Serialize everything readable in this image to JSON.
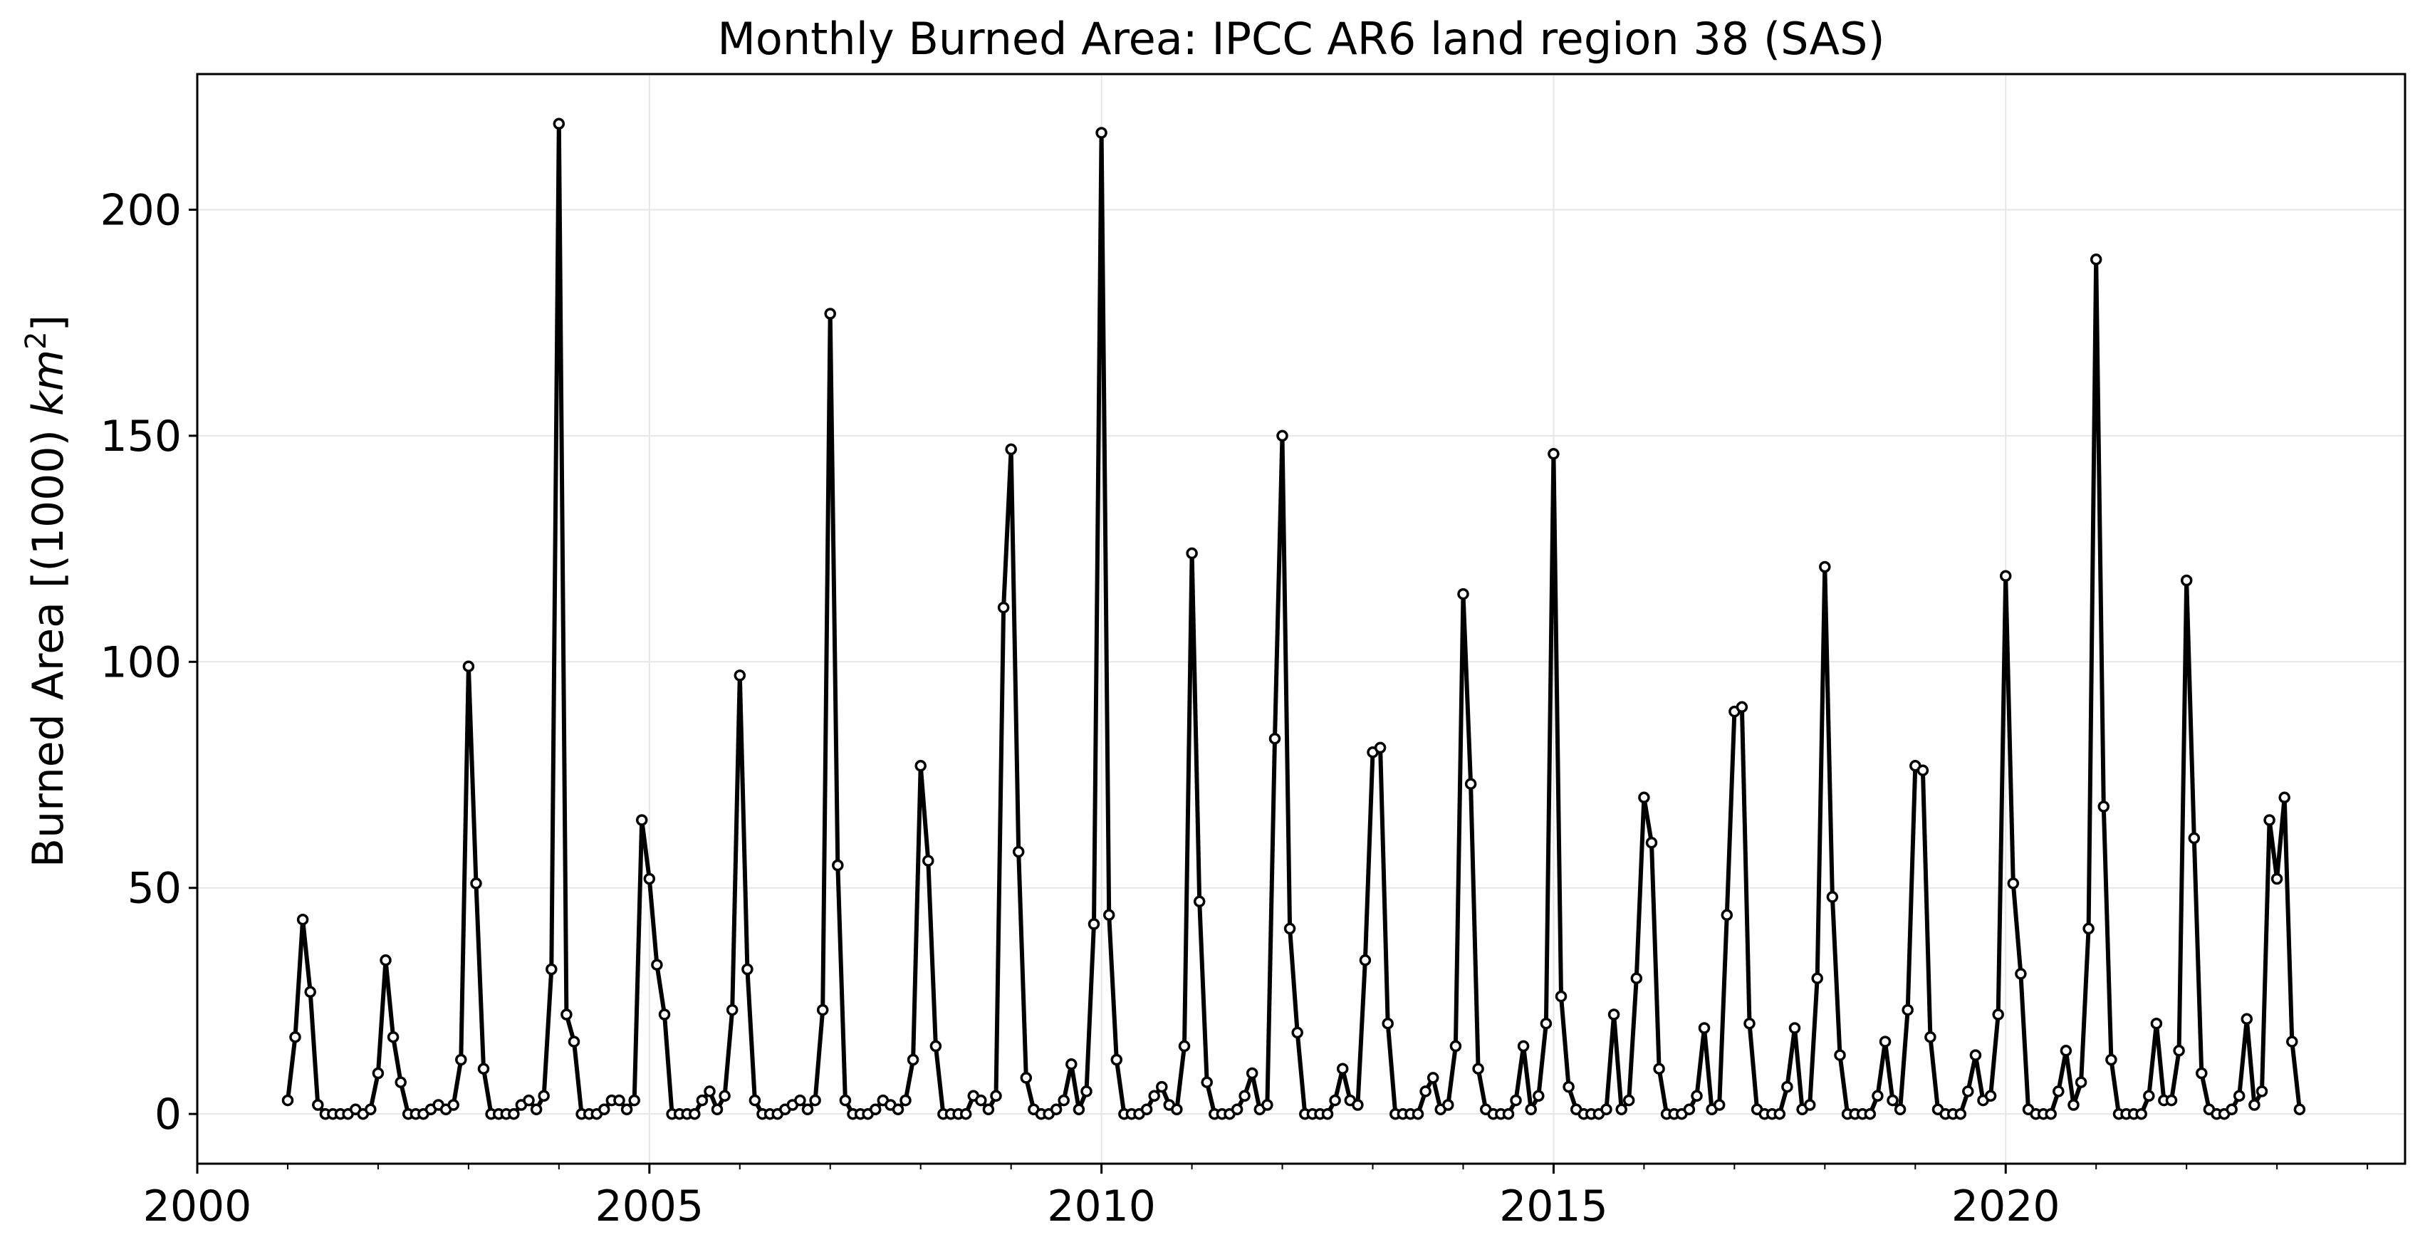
{
  "chart_data": {
    "type": "line",
    "title": "Monthly Burned Area: IPCC AR6 land region 38 (SAS)",
    "xlabel": "",
    "ylabel": "Burned Area [(1000) km²]",
    "ylabel_main": "Burned Area [(1000) ",
    "ylabel_unit": "km",
    "ylabel_exp": "2",
    "ylabel_close": "]",
    "xlim": [
      "2000-01",
      "2024-06"
    ],
    "ylim": [
      -11,
      230
    ],
    "x_ticks": [
      "2000",
      "2005",
      "2010",
      "2015",
      "2020"
    ],
    "y_ticks": [
      0,
      50,
      100,
      150,
      200
    ],
    "grid": true,
    "legend": "none",
    "series": [
      {
        "start": "2001-01",
        "frequency": "monthly",
        "color": "#000000",
        "marker": "o",
        "values": [
          3,
          17,
          43,
          27,
          2,
          0,
          0,
          0,
          0,
          1,
          0,
          1,
          9,
          34,
          17,
          7,
          0,
          0,
          0,
          1,
          2,
          1,
          2,
          12,
          99,
          51,
          10,
          0,
          0,
          0,
          0,
          2,
          3,
          1,
          4,
          32,
          219,
          22,
          16,
          0,
          0,
          0,
          1,
          3,
          3,
          1,
          3,
          65,
          52,
          33,
          22,
          0,
          0,
          0,
          0,
          3,
          5,
          1,
          4,
          23,
          97,
          32,
          3,
          0,
          0,
          0,
          1,
          2,
          3,
          1,
          3,
          23,
          177,
          55,
          3,
          0,
          0,
          0,
          1,
          3,
          2,
          1,
          3,
          12,
          77,
          56,
          15,
          0,
          0,
          0,
          0,
          4,
          3,
          1,
          4,
          112,
          147,
          58,
          8,
          1,
          0,
          0,
          1,
          3,
          11,
          1,
          5,
          42,
          217,
          44,
          12,
          0,
          0,
          0,
          1,
          4,
          6,
          2,
          1,
          15,
          124,
          47,
          7,
          0,
          0,
          0,
          1,
          4,
          9,
          1,
          2,
          83,
          150,
          41,
          18,
          0,
          0,
          0,
          0,
          3,
          10,
          3,
          2,
          34,
          80,
          81,
          20,
          0,
          0,
          0,
          0,
          5,
          8,
          1,
          2,
          15,
          115,
          73,
          10,
          1,
          0,
          0,
          0,
          3,
          15,
          1,
          4,
          20,
          146,
          26,
          6,
          1,
          0,
          0,
          0,
          1,
          22,
          1,
          3,
          30,
          70,
          60,
          10,
          0,
          0,
          0,
          1,
          4,
          19,
          1,
          2,
          44,
          89,
          90,
          20,
          1,
          0,
          0,
          0,
          6,
          19,
          1,
          2,
          30,
          121,
          48,
          13,
          0,
          0,
          0,
          0,
          4,
          16,
          3,
          1,
          23,
          77,
          76,
          17,
          1,
          0,
          0,
          0,
          5,
          13,
          3,
          4,
          22,
          119,
          51,
          31,
          1,
          0,
          0,
          0,
          5,
          14,
          2,
          7,
          41,
          189,
          68,
          12,
          0,
          0,
          0,
          0,
          4,
          20,
          3,
          3,
          14,
          118,
          61,
          9,
          1,
          0,
          0,
          1,
          4,
          21,
          2,
          5,
          65,
          52,
          70,
          16,
          1
        ]
      }
    ]
  }
}
